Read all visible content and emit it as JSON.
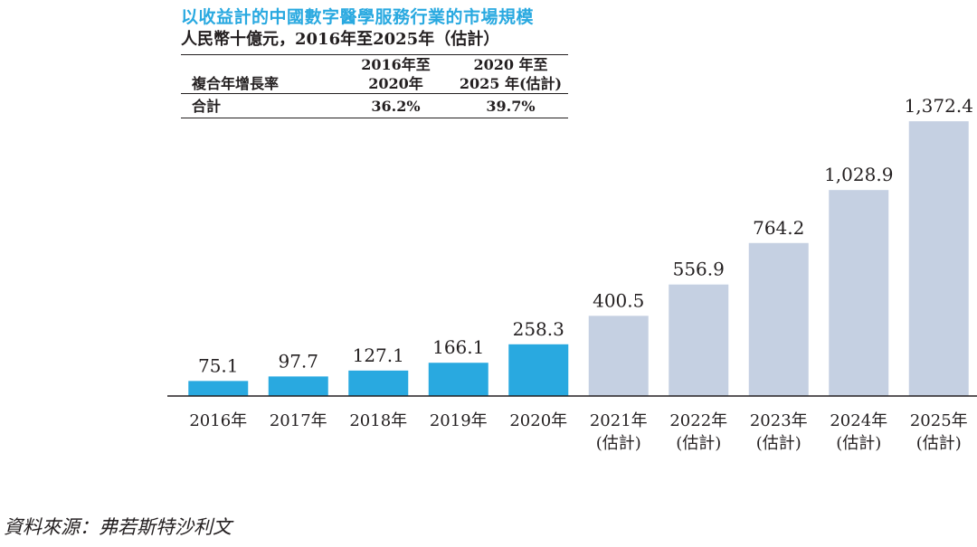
{
  "header": {
    "title": "以收益計的中國數字醫學服務行業的市場規模",
    "subtitle": "人民幣十億元，2016年至2025年（估計）"
  },
  "cagr_table": {
    "label_header": "複合年增長率",
    "col1_header": [
      "2016年至",
      "2020年"
    ],
    "col2_header": [
      "2020 年至",
      "2025 年(估計)"
    ],
    "row_label": "合計",
    "col1_value": "36.2%",
    "col2_value": "39.7%"
  },
  "colors": {
    "actual": "#29a9e0",
    "estimate": "#c5d0e2",
    "axis": "#231f20",
    "title": "#29a9e0"
  },
  "chart_data": {
    "type": "bar",
    "categories": [
      [
        "2016年"
      ],
      [
        "2017年"
      ],
      [
        "2018年"
      ],
      [
        "2019年"
      ],
      [
        "2020年"
      ],
      [
        "2021年",
        "(估計)"
      ],
      [
        "2022年",
        "(估計)"
      ],
      [
        "2023年",
        "(估計)"
      ],
      [
        "2024年",
        "(估計)"
      ],
      [
        "2025年",
        "(估計)"
      ]
    ],
    "values": [
      75.1,
      97.7,
      127.1,
      166.1,
      258.3,
      400.5,
      556.9,
      764.2,
      1028.9,
      1372.4
    ],
    "value_labels": [
      "75.1",
      "97.7",
      "127.1",
      "166.1",
      "258.3",
      "400.5",
      "556.9",
      "764.2",
      "1,028.9",
      "1,372.4"
    ],
    "estimated": [
      false,
      false,
      false,
      false,
      false,
      true,
      true,
      true,
      true,
      true
    ],
    "title": "以收益計的中國數字醫學服務行業的市場規模",
    "xlabel": "",
    "ylabel": "",
    "ylim": [
      0,
      1400
    ],
    "grid": false,
    "legend": "none"
  },
  "footer": {
    "source": "資料來源：弗若斯特沙利文"
  }
}
